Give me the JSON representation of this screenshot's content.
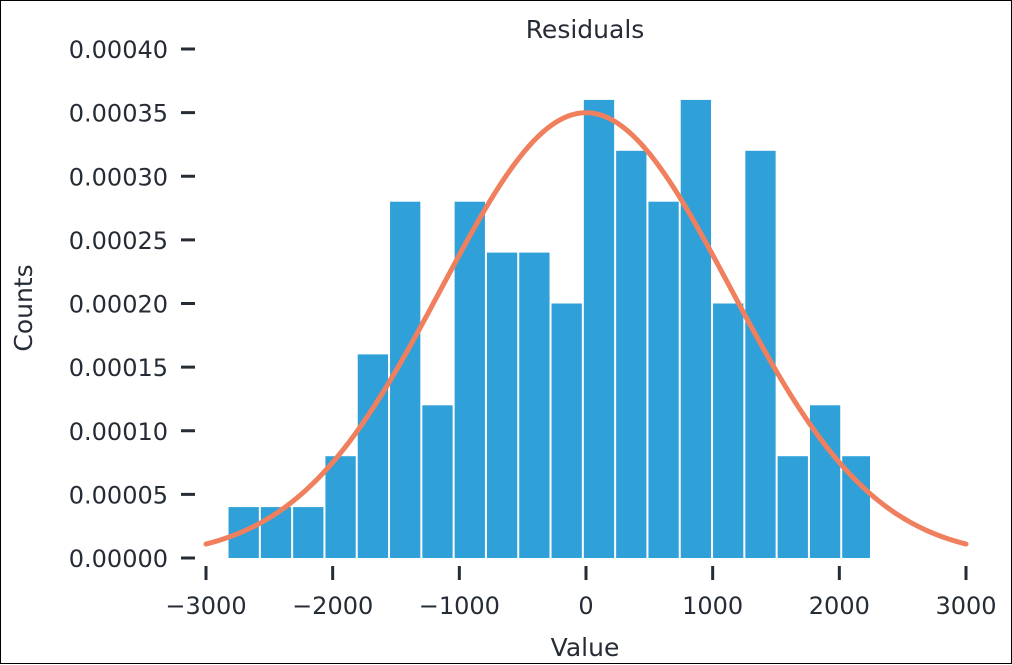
{
  "chart_data": {
    "type": "bar",
    "title": "Residuals",
    "xlabel": "Value",
    "ylabel": "Counts",
    "xlim": [
      -3000,
      3000
    ],
    "ylim": [
      0,
      0.0004
    ],
    "xticks": [
      -3000,
      -2000,
      -1000,
      0,
      1000,
      2000,
      3000
    ],
    "xtick_labels": [
      "−3000",
      "−2000",
      "−1000",
      "0",
      "1000",
      "2000",
      "3000"
    ],
    "yticks": [
      0,
      5e-05,
      0.0001,
      0.00015,
      0.0002,
      0.00025,
      0.0003,
      0.00035,
      0.0004
    ],
    "ytick_labels": [
      "0.00000",
      "0.00005",
      "0.00010",
      "0.00015",
      "0.00020",
      "0.00025",
      "0.00030",
      "0.00035",
      "0.00040"
    ],
    "grid": false,
    "bins": {
      "edges": [
        -2830,
        -2575,
        -2320,
        -2065,
        -1810,
        -1555,
        -1300,
        -1045,
        -790,
        -535,
        -280,
        -25,
        230,
        485,
        740,
        995,
        1250,
        1505,
        1760,
        2015,
        2250
      ],
      "values": [
        4e-05,
        4e-05,
        4e-05,
        8e-05,
        0.00016,
        0.00028,
        0.00012,
        0.00028,
        0.00024,
        0.00024,
        0.0002,
        0.00036,
        0.00032,
        0.00028,
        0.00036,
        0.0002,
        0.00032,
        8e-05,
        0.00012,
        8e-05
      ]
    },
    "series": [
      {
        "type": "line",
        "distribution": "normal",
        "mean": 0,
        "std": 1140,
        "x_range": [
          -3000,
          3000
        ]
      }
    ],
    "colors": {
      "bars": "#2fa1d8",
      "curve": "#f07f5e",
      "text": "#262c35"
    }
  }
}
